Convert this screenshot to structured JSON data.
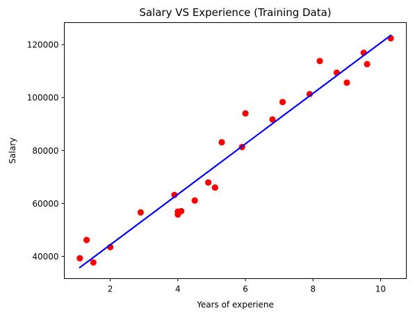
{
  "chart_data": {
    "type": "scatter",
    "title": "Salary VS Experience (Training Data)",
    "xlabel": "Years of experiene",
    "ylabel": "Salary",
    "xlim": [
      0.64,
      10.76
    ],
    "ylim": [
      31600,
      128300
    ],
    "x_ticks": [
      2,
      4,
      6,
      8,
      10
    ],
    "y_ticks": [
      40000,
      60000,
      80000,
      100000,
      120000
    ],
    "grid": false,
    "series": [
      {
        "type": "scatter",
        "color": "#ff0000",
        "points": [
          [
            1.1,
            39300
          ],
          [
            1.3,
            46200
          ],
          [
            1.5,
            37700
          ],
          [
            2.0,
            43500
          ],
          [
            2.9,
            56600
          ],
          [
            3.9,
            63200
          ],
          [
            4.0,
            55800
          ],
          [
            4.0,
            56900
          ],
          [
            4.1,
            57100
          ],
          [
            4.5,
            61100
          ],
          [
            4.9,
            67900
          ],
          [
            5.1,
            66000
          ],
          [
            5.3,
            83100
          ],
          [
            5.9,
            81300
          ],
          [
            6.0,
            94000
          ],
          [
            6.8,
            91700
          ],
          [
            7.1,
            98300
          ],
          [
            7.9,
            101300
          ],
          [
            8.2,
            113800
          ],
          [
            8.7,
            109400
          ],
          [
            9.0,
            105600
          ],
          [
            9.5,
            116900
          ],
          [
            9.6,
            112600
          ],
          [
            10.3,
            122400
          ]
        ]
      },
      {
        "type": "line",
        "color": "#0000ff",
        "points": [
          [
            1.1,
            35800
          ],
          [
            10.3,
            123500
          ]
        ]
      }
    ]
  }
}
